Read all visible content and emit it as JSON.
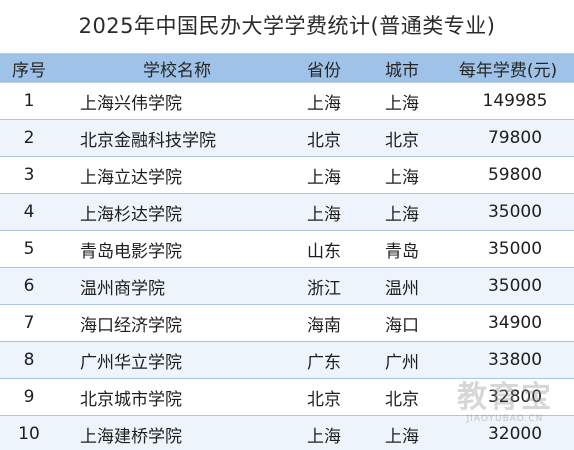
{
  "title": "2025年中国民办大学学费统计(普通类专业)",
  "columns": {
    "rank": "序号",
    "name": "学校名称",
    "province": "省份",
    "city": "城市",
    "fee": "每年学费(元)"
  },
  "rows": [
    {
      "rank": "1",
      "name": "上海兴伟学院",
      "province": "上海",
      "city": "上海",
      "fee": "149985"
    },
    {
      "rank": "2",
      "name": "北京金融科技学院",
      "province": "北京",
      "city": "北京",
      "fee": "79800"
    },
    {
      "rank": "3",
      "name": "上海立达学院",
      "province": "上海",
      "city": "上海",
      "fee": "59800"
    },
    {
      "rank": "4",
      "name": "上海杉达学院",
      "province": "上海",
      "city": "上海",
      "fee": "35000"
    },
    {
      "rank": "5",
      "name": "青岛电影学院",
      "province": "山东",
      "city": "青岛",
      "fee": "35000"
    },
    {
      "rank": "6",
      "name": "温州商学院",
      "province": "浙江",
      "city": "温州",
      "fee": "35000"
    },
    {
      "rank": "7",
      "name": "海口经济学院",
      "province": "海南",
      "city": "海口",
      "fee": "34900"
    },
    {
      "rank": "8",
      "name": "广州华立学院",
      "province": "广东",
      "city": "广州",
      "fee": "33800"
    },
    {
      "rank": "9",
      "name": "北京城市学院",
      "province": "北京",
      "city": "北京",
      "fee": "32800"
    },
    {
      "rank": "10",
      "name": "上海建桥学院",
      "province": "上海",
      "city": "上海",
      "fee": "32000"
    }
  ],
  "watermark": {
    "main": "教育宝",
    "sub": "JIAOYUBAO.CN"
  },
  "colors": {
    "header_bg": "#9fc3e8",
    "row_stripe": "#eef4fb",
    "row_border": "#a9c6e6"
  }
}
